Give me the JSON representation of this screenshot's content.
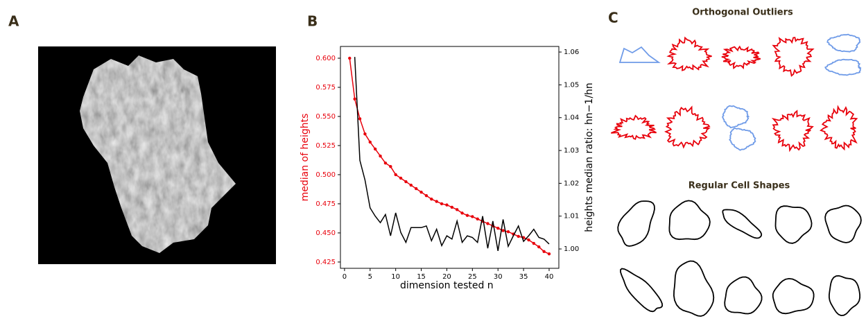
{
  "panel_labels": [
    "A",
    "B",
    "C"
  ],
  "chart_data": {
    "type": "line",
    "xlabel": "dimension tested n",
    "ylabel": "median of heights",
    "y2label": "heights median ratio: hn−1/hn",
    "xlim": [
      -0.8,
      41.9
    ],
    "xticks": [
      0,
      5,
      10,
      15,
      20,
      25,
      30,
      35,
      40
    ],
    "ylim": [
      0.4196,
      0.6101
    ],
    "yticks": [
      0.425,
      {
        "value": 0.45,
        "label": "0.450"
      },
      0.475,
      {
        "value": 0.5,
        "label": "0.500"
      },
      0.525,
      {
        "value": 0.55,
        "label": "0.550"
      },
      0.575,
      {
        "value": 0.6,
        "label": "0.600"
      }
    ],
    "y2lim": [
      0.9941,
      1.0617
    ],
    "y2ticks": [
      {
        "value": 1,
        "label": "1.00"
      },
      1.01,
      1.02,
      1.03,
      1.04,
      1.05,
      1.06
    ],
    "ylabel_color": "#e8000b",
    "series": [
      {
        "color": "#e8000b",
        "markers": true,
        "x": [
          1,
          2,
          3,
          4,
          5,
          6,
          7,
          8,
          9,
          10,
          11,
          12,
          13,
          14,
          15,
          16,
          17,
          18,
          19,
          20,
          21,
          22,
          23,
          24,
          25,
          26,
          27,
          28,
          29,
          30,
          31,
          32,
          33,
          34,
          35,
          36,
          37,
          38,
          39,
          40
        ],
        "values": [
          0.6,
          0.565,
          0.548,
          0.535,
          0.528,
          0.522,
          0.516,
          0.51,
          0.507,
          0.5,
          0.497,
          0.494,
          0.491,
          0.488,
          0.485,
          0.482,
          0.479,
          0.477,
          0.475,
          0.474,
          0.472,
          0.47,
          0.467,
          0.465,
          0.464,
          0.462,
          0.46,
          0.458,
          0.456,
          0.454,
          0.452,
          0.451,
          0.449,
          0.447,
          0.446,
          0.444,
          0.441,
          0.438,
          0.434,
          0.432
        ]
      },
      {
        "color": "#000000",
        "axis": "y2",
        "markers": false,
        "x": [
          2,
          3,
          4,
          5,
          6,
          7,
          8,
          9,
          10,
          11,
          12,
          13,
          14,
          15,
          16,
          17,
          18,
          19,
          20,
          21,
          22,
          23,
          24,
          25,
          26,
          27,
          28,
          29,
          30,
          31,
          32,
          33,
          34,
          35,
          36,
          37,
          38,
          39,
          40
        ],
        "values": [
          1.0585,
          1.027,
          1.021,
          1.0125,
          1.01,
          1.008,
          1.0105,
          1.004,
          1.011,
          1.005,
          1.002,
          1.0065,
          1.0065,
          1.0065,
          1.007,
          1.0025,
          1.006,
          1.001,
          1.004,
          1.003,
          1.0085,
          1.002,
          1.004,
          1.0035,
          1.002,
          1.01,
          1.0002,
          1.0085,
          0.9994,
          1.009,
          1.0008,
          1.004,
          1.007,
          1.0023,
          1.004,
          1.006,
          1.0035,
          1.003,
          1.0015
        ]
      }
    ]
  },
  "shapes_panel": {
    "outliers_title": "Orthogonal Outliers",
    "regular_title": "Regular Cell Shapes"
  }
}
